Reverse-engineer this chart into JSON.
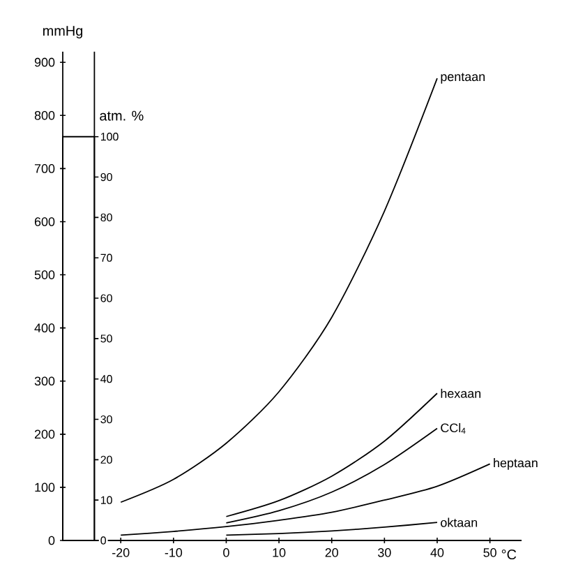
{
  "chart_data": {
    "type": "line",
    "ylabel": "mmHg",
    "y2label": "atm. %",
    "xlabel": "°C",
    "xlim": [
      -31,
      56
    ],
    "ylim": [
      0,
      920
    ],
    "y2lim": [
      0,
      121.05
    ],
    "xticks": [
      -20,
      -10,
      0,
      10,
      20,
      30,
      40,
      50
    ],
    "yticks": [
      0,
      100,
      200,
      300,
      400,
      500,
      600,
      700,
      800,
      900
    ],
    "y2ticks": [
      0,
      10,
      20,
      30,
      40,
      50,
      60,
      70,
      80,
      90,
      100
    ],
    "grid": false,
    "marker": "none",
    "line_style": "solid",
    "series": [
      {
        "type": "bar",
        "color": "#000000",
        "x": [
          -28
        ],
        "values": [
          760
        ]
      },
      {
        "name": "pentaan",
        "color": "#000000",
        "x": [
          -20,
          -10,
          0,
          10,
          20,
          30,
          40
        ],
        "values": [
          72,
          115,
          183,
          280,
          420,
          620,
          870
        ]
      },
      {
        "name": "hexaan",
        "color": "#000000",
        "x": [
          0,
          10,
          20,
          30,
          40
        ],
        "values": [
          45,
          75,
          121,
          187,
          277
        ]
      },
      {
        "name": "CCl$_{4}$",
        "color": "#000000",
        "x": [
          0,
          10,
          20,
          30,
          40
        ],
        "values": [
          33,
          56,
          91,
          143,
          211
        ]
      },
      {
        "name": "heptaan",
        "color": "#000000",
        "x": [
          -20,
          -10,
          0,
          10,
          20,
          30,
          40,
          50
        ],
        "values": [
          10,
          17,
          26,
          38,
          53,
          76,
          102,
          144
        ]
      },
      {
        "name": "oktaan",
        "color": "#000000",
        "x": [
          0,
          10,
          20,
          30,
          40
        ],
        "values": [
          10,
          13,
          18,
          25,
          34
        ]
      }
    ]
  }
}
